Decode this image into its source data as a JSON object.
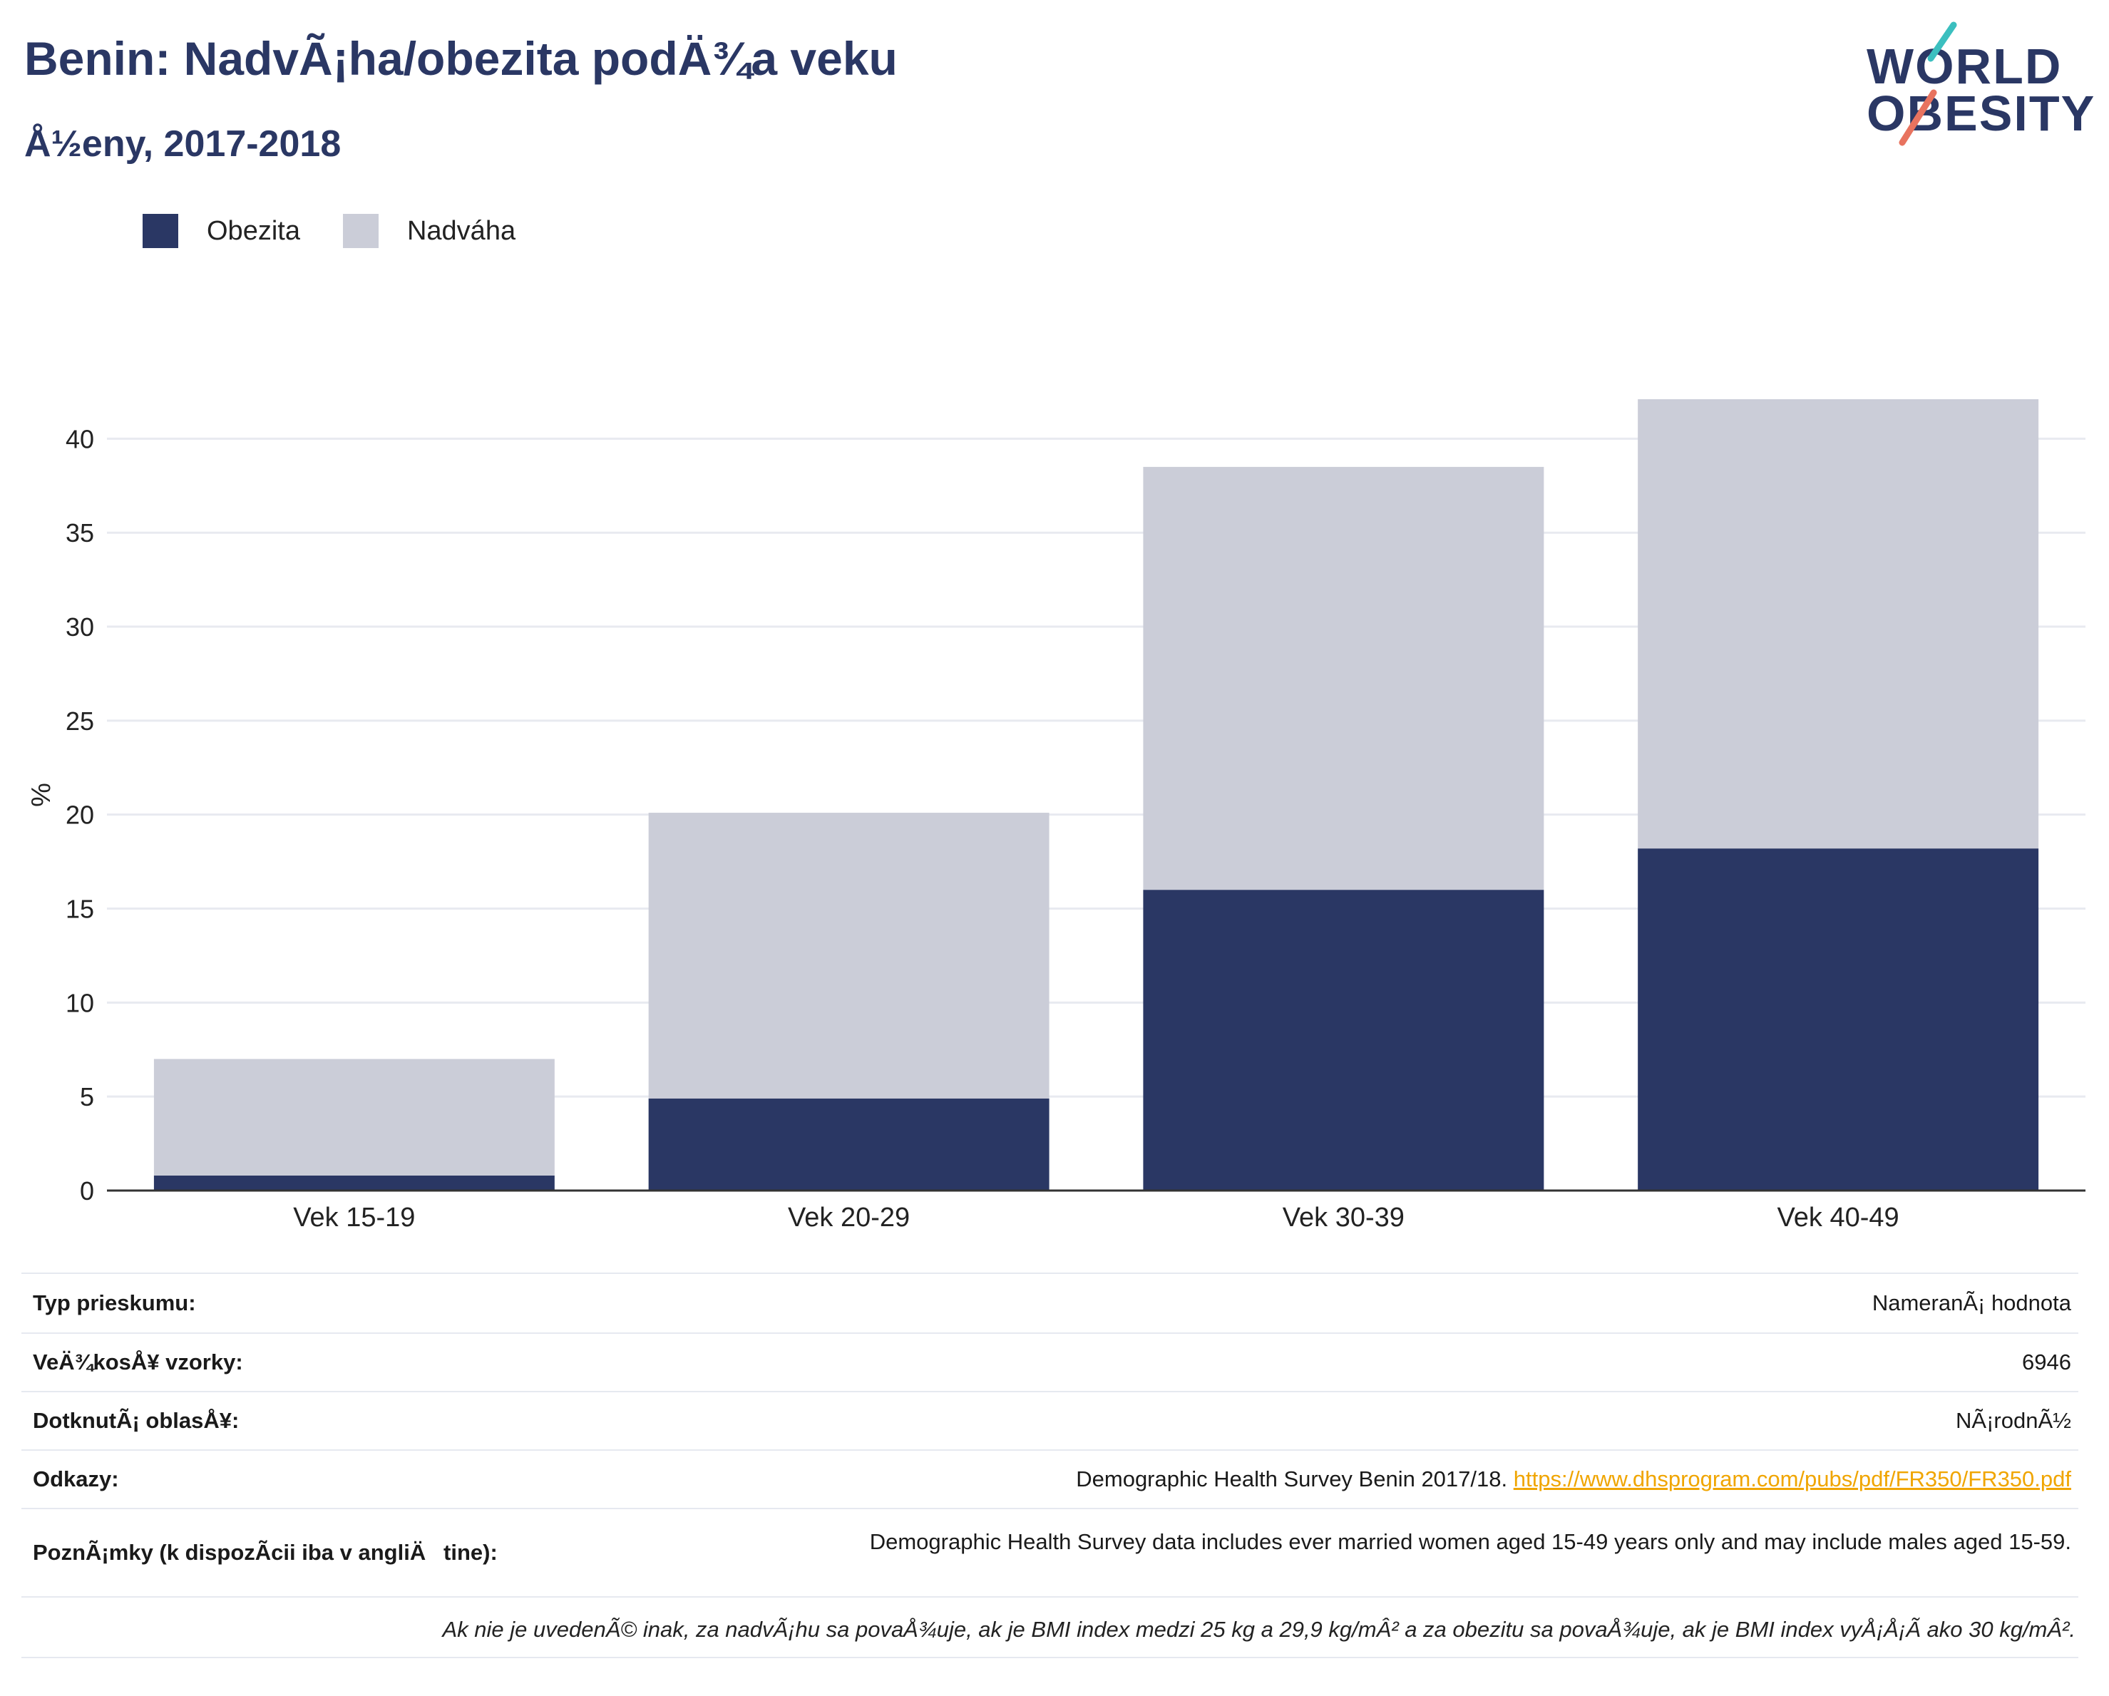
{
  "header": {
    "title": "Benin: NadvÃ¡ha/obezita podÄ¾a veku",
    "subtitle": "Å½eny, 2017-2018"
  },
  "logo": {
    "line1": "WORLD",
    "line2": "OBESITY"
  },
  "colors": {
    "obezita": "#2a3764",
    "nadvaha": "#cbcdd8",
    "accent_teal": "#3bbfbf",
    "accent_coral": "#e8735f"
  },
  "legend": [
    {
      "label": "Obezita",
      "color": "#2a3764"
    },
    {
      "label": "Nadváha",
      "color": "#cbcdd8"
    }
  ],
  "chart_data": {
    "type": "bar",
    "stacked": true,
    "categories": [
      "Vek 15-19",
      "Vek 20-29",
      "Vek 30-39",
      "Vek 40-49"
    ],
    "series": [
      {
        "name": "Obezita",
        "values": [
          0.8,
          4.9,
          16.0,
          18.2
        ]
      },
      {
        "name": "Nadváha",
        "values": [
          6.2,
          15.2,
          22.5,
          23.9
        ]
      }
    ],
    "ylabel": "%",
    "ylim": [
      0,
      42.1
    ],
    "yticks": [
      0,
      5,
      10,
      15,
      20,
      25,
      30,
      35,
      40
    ],
    "grid": true,
    "legend_position": "top-left"
  },
  "info": [
    {
      "key": "Typ prieskumu:",
      "value": "NameranÃ¡ hodnota"
    },
    {
      "key": "VeÄ¾kosÅ¥ vzorky:",
      "value": "6946"
    },
    {
      "key": "DotknutÃ¡ oblasÅ¥:",
      "value": "NÃ¡rodnÃ½"
    },
    {
      "key": "Odkazy:",
      "value": "Demographic Health Survey Benin 2017/18. ",
      "link": "https://www.dhsprogram.com/pubs/pdf/FR350/FR350.pdf"
    },
    {
      "key": "PoznÃ¡mky (k dispozÃ­cii iba v angliÄtine):",
      "value": "Demographic Health Survey data includes ever married women aged 15-49 years only and may include males aged 15-59."
    }
  ],
  "footnote": "Ak nie je uvedenÃ© inak, za nadvÃ¡hu sa povaÅ¾uje, ak je BMI index medzi 25 kg a 29,9 kg/mÂ² a za obezitu sa povaÅ¾uje, ak je BMI index vyÅ¡Å¡Ã­ ako 30 kg/mÂ²."
}
